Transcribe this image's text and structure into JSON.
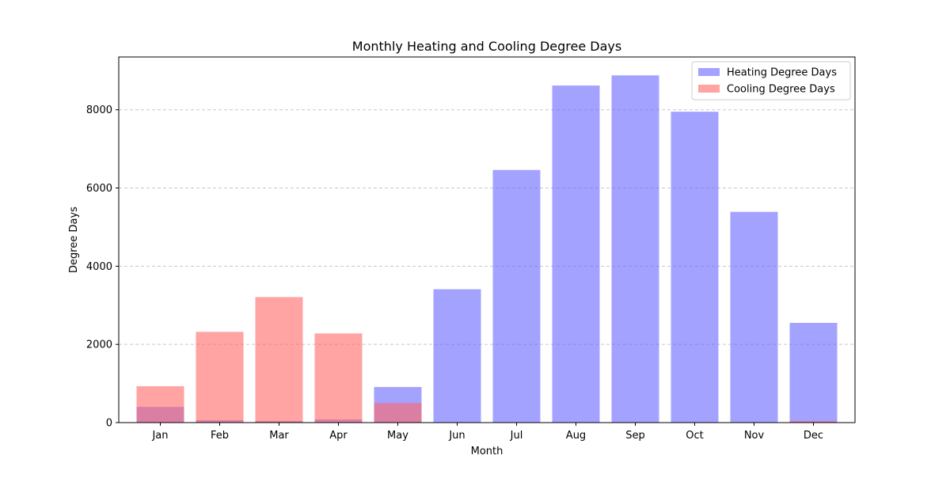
{
  "chart_data": {
    "type": "bar",
    "title": "Monthly Heating and Cooling Degree Days",
    "xlabel": "Month",
    "ylabel": "Degree Days",
    "categories": [
      "Jan",
      "Feb",
      "Mar",
      "Apr",
      "May",
      "Jun",
      "Jul",
      "Aug",
      "Sep",
      "Oct",
      "Nov",
      "Dec"
    ],
    "series": [
      {
        "name": "Heating Degree Days",
        "color": "#6666ff",
        "values": [
          400,
          60,
          40,
          80,
          910,
          3410,
          6460,
          8620,
          8880,
          7950,
          5390,
          2550
        ]
      },
      {
        "name": "Cooling Degree Days",
        "color": "#ff6666",
        "values": [
          930,
          2320,
          3210,
          2280,
          500,
          0,
          0,
          0,
          0,
          0,
          0,
          40
        ]
      }
    ],
    "ylim": [
      0,
      9350
    ],
    "yticks": [
      0,
      2000,
      4000,
      6000,
      8000
    ],
    "grid": "y-dashed",
    "legend_position": "top-right",
    "overlay": true,
    "alpha": 0.6
  }
}
